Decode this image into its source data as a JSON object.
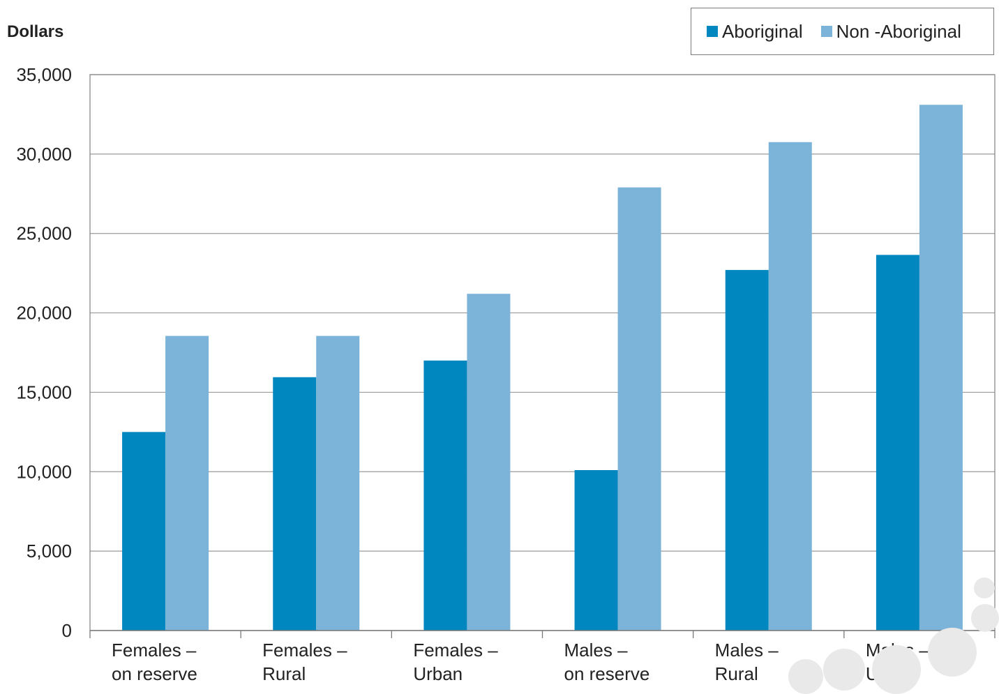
{
  "chart_data": {
    "type": "bar",
    "ylabel": "Dollars",
    "ylim": [
      0,
      35000
    ],
    "yticks": [
      0,
      5000,
      10000,
      15000,
      20000,
      25000,
      30000,
      35000
    ],
    "ytick_labels": [
      "0",
      "5,000",
      "10,000",
      "15,000",
      "20,000",
      "25,000",
      "30,000",
      "35,000"
    ],
    "categories": [
      [
        "Females –",
        "on reserve"
      ],
      [
        "Females –",
        "Rural"
      ],
      [
        "Females –",
        "Urban"
      ],
      [
        "Males –",
        "on reserve"
      ],
      [
        "Males  –",
        "Rural"
      ],
      [
        "Males –",
        "Urban"
      ]
    ],
    "series": [
      {
        "name": "Aboriginal",
        "color": "#0087bf",
        "values": [
          12500,
          15950,
          17000,
          10100,
          22700,
          23650
        ]
      },
      {
        "name": "Non -Aboriginal",
        "color": "#7bb4d8",
        "values": [
          18550,
          18550,
          21200,
          27900,
          30750,
          33100
        ]
      }
    ],
    "grid": true,
    "legend_position": "top-right"
  }
}
